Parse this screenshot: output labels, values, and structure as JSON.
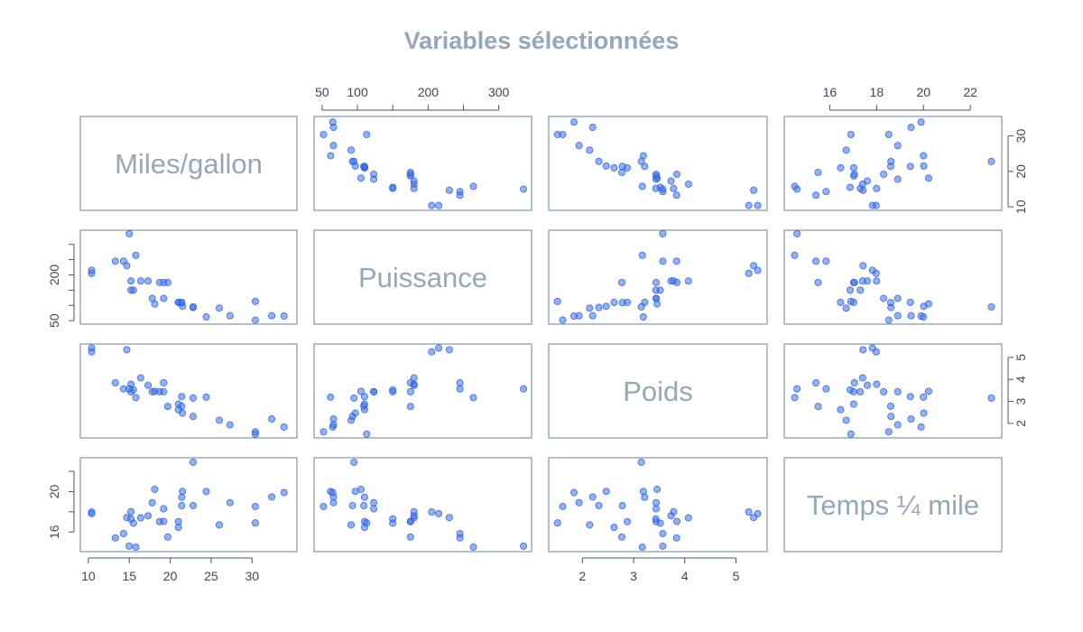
{
  "chart_data": {
    "type": "scatter",
    "subtype": "scatterplot-matrix",
    "title": "Variables sélectionnées",
    "colors": {
      "points": "#3b6fe8",
      "panel_border": "#8595ab",
      "title": "#97a6b8",
      "diagonal_label": "#97a6b8",
      "axis": "#4a5466"
    },
    "grid": false,
    "variables": [
      {
        "name": "Miles/gallon",
        "range": [
          10,
          34.5
        ],
        "ticks": [
          10,
          15,
          20,
          25,
          30
        ],
        "axis_side": "bottom",
        "tick_labels_vertical": [
          "10",
          "20",
          "30"
        ],
        "vertical_side": "right"
      },
      {
        "name": "Puissance",
        "range": [
          50,
          335
        ],
        "ticks": [
          50,
          100,
          150,
          200,
          250,
          300
        ],
        "tick_labels": [
          "50",
          "100",
          "",
          "200",
          "",
          "300"
        ],
        "axis_side": "top",
        "vertical_ticks": [
          50,
          100,
          150,
          200,
          250,
          300
        ],
        "vertical_labels": [
          "50",
          "",
          "",
          "200",
          "",
          ""
        ],
        "vertical_side": "left"
      },
      {
        "name": "Poids",
        "range": [
          1.5,
          5.45
        ],
        "ticks": [
          2,
          3,
          4,
          5
        ],
        "axis_side": "bottom",
        "vertical_side": "right"
      },
      {
        "name": "Temps ¼ mile",
        "range": [
          14.4,
          23
        ],
        "ticks": [
          16,
          18,
          20,
          22
        ],
        "axis_side": "top",
        "vertical_ticks": [
          16,
          18,
          20,
          22
        ],
        "vertical_labels": [
          "16",
          "",
          "20",
          ""
        ],
        "vertical_side": "left"
      }
    ],
    "observations": [
      {
        "mpg": 21.0,
        "hp": 110,
        "wt": 2.62,
        "qsec": 16.46
      },
      {
        "mpg": 21.0,
        "hp": 110,
        "wt": 2.875,
        "qsec": 17.02
      },
      {
        "mpg": 22.8,
        "hp": 93,
        "wt": 2.32,
        "qsec": 18.61
      },
      {
        "mpg": 21.4,
        "hp": 110,
        "wt": 3.215,
        "qsec": 19.44
      },
      {
        "mpg": 18.7,
        "hp": 175,
        "wt": 3.44,
        "qsec": 17.02
      },
      {
        "mpg": 18.1,
        "hp": 105,
        "wt": 3.46,
        "qsec": 20.22
      },
      {
        "mpg": 14.3,
        "hp": 245,
        "wt": 3.57,
        "qsec": 15.84
      },
      {
        "mpg": 24.4,
        "hp": 62,
        "wt": 3.19,
        "qsec": 20.0
      },
      {
        "mpg": 22.8,
        "hp": 95,
        "wt": 3.15,
        "qsec": 22.9
      },
      {
        "mpg": 19.2,
        "hp": 123,
        "wt": 3.44,
        "qsec": 18.3
      },
      {
        "mpg": 17.8,
        "hp": 123,
        "wt": 3.44,
        "qsec": 18.9
      },
      {
        "mpg": 16.4,
        "hp": 180,
        "wt": 4.07,
        "qsec": 17.4
      },
      {
        "mpg": 17.3,
        "hp": 180,
        "wt": 3.73,
        "qsec": 17.6
      },
      {
        "mpg": 15.2,
        "hp": 180,
        "wt": 3.78,
        "qsec": 18.0
      },
      {
        "mpg": 10.4,
        "hp": 205,
        "wt": 5.25,
        "qsec": 17.98
      },
      {
        "mpg": 10.4,
        "hp": 215,
        "wt": 5.424,
        "qsec": 17.82
      },
      {
        "mpg": 14.7,
        "hp": 230,
        "wt": 5.345,
        "qsec": 17.42
      },
      {
        "mpg": 32.4,
        "hp": 66,
        "wt": 2.2,
        "qsec": 19.47
      },
      {
        "mpg": 30.4,
        "hp": 52,
        "wt": 1.615,
        "qsec": 18.52
      },
      {
        "mpg": 33.9,
        "hp": 65,
        "wt": 1.835,
        "qsec": 19.9
      },
      {
        "mpg": 21.5,
        "hp": 97,
        "wt": 2.465,
        "qsec": 20.01
      },
      {
        "mpg": 15.5,
        "hp": 150,
        "wt": 3.52,
        "qsec": 16.87
      },
      {
        "mpg": 15.2,
        "hp": 150,
        "wt": 3.435,
        "qsec": 17.3
      },
      {
        "mpg": 13.3,
        "hp": 245,
        "wt": 3.84,
        "qsec": 15.41
      },
      {
        "mpg": 19.2,
        "hp": 175,
        "wt": 3.845,
        "qsec": 17.05
      },
      {
        "mpg": 27.3,
        "hp": 66,
        "wt": 1.935,
        "qsec": 18.9
      },
      {
        "mpg": 26.0,
        "hp": 91,
        "wt": 2.14,
        "qsec": 16.7
      },
      {
        "mpg": 30.4,
        "hp": 113,
        "wt": 1.513,
        "qsec": 16.9
      },
      {
        "mpg": 15.8,
        "hp": 264,
        "wt": 3.17,
        "qsec": 14.5
      },
      {
        "mpg": 19.7,
        "hp": 175,
        "wt": 2.77,
        "qsec": 15.5
      },
      {
        "mpg": 15.0,
        "hp": 335,
        "wt": 3.57,
        "qsec": 14.6
      },
      {
        "mpg": 21.4,
        "hp": 109,
        "wt": 2.78,
        "qsec": 18.6
      }
    ]
  }
}
